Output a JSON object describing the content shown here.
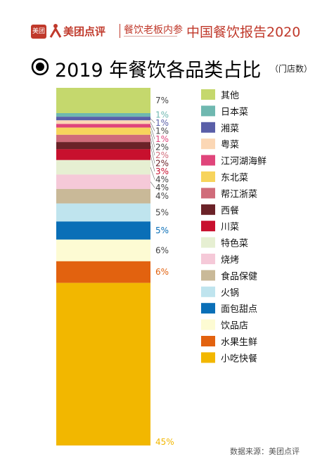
{
  "header": {
    "logo_badge": "美团",
    "brand": "美团点评",
    "sub_brand": "餐饮老板内参",
    "report_title": "中国餐饮报告2020"
  },
  "title": {
    "main": "2019 年餐饮各品类占比",
    "unit": "（门店数）"
  },
  "source": "数据来源：美团点评",
  "colors": {
    "brand_red": "#c0392b"
  },
  "chart_data": {
    "type": "bar",
    "stacked": true,
    "orientation": "vertical",
    "unit": "%",
    "series": [
      {
        "name": "其他",
        "value": 7,
        "label": "7%",
        "color": "#c5d86d"
      },
      {
        "name": "日本菜",
        "value": 1,
        "label": "1%",
        "color": "#6fb8b0"
      },
      {
        "name": "湘菜",
        "value": 1,
        "label": "1%",
        "color": "#5a5fa8"
      },
      {
        "name": "粤菜",
        "value": 1,
        "label": "1%",
        "color": "#fbd7b5"
      },
      {
        "name": "江河湖海鲜",
        "value": 1,
        "label": "1%",
        "color": "#e0457b"
      },
      {
        "name": "东北菜",
        "value": 2,
        "label": "2%",
        "color": "#f7d45c"
      },
      {
        "name": "帮江浙菜",
        "value": 2,
        "label": "2%",
        "color": "#d06c7a"
      },
      {
        "name": "西餐",
        "value": 2,
        "label": "2%",
        "color": "#6b2228"
      },
      {
        "name": "川菜",
        "value": 3,
        "label": "3%",
        "color": "#c8102e"
      },
      {
        "name": "特色菜",
        "value": 4,
        "label": "4%",
        "color": "#e6efd2"
      },
      {
        "name": "烧烤",
        "value": 4,
        "label": "4%",
        "color": "#f5c9d8"
      },
      {
        "name": "食品保健",
        "value": 4,
        "label": "4%",
        "color": "#c9b998"
      },
      {
        "name": "火锅",
        "value": 5,
        "label": "5%",
        "color": "#bfe4ee"
      },
      {
        "name": "面包甜点",
        "value": 5,
        "label": "5%",
        "color": "#0a6fb7"
      },
      {
        "name": "饮品店",
        "value": 6,
        "label": "6%",
        "color": "#fdfbd3"
      },
      {
        "name": "水果生鲜",
        "value": 6,
        "label": "6%",
        "color": "#e2620f"
      },
      {
        "name": "小吃快餐",
        "value": 45,
        "label": "45%",
        "color": "#f2b700"
      }
    ]
  }
}
